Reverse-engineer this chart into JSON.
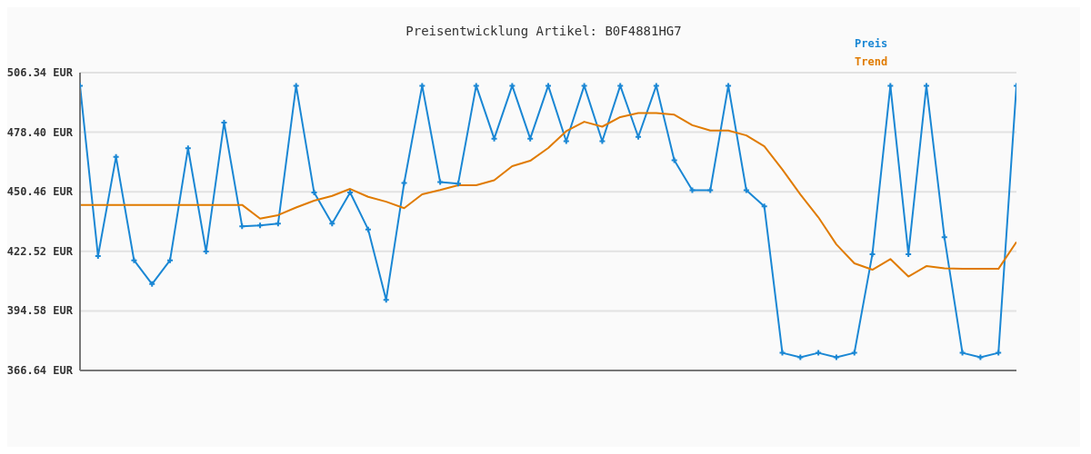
{
  "chart_data": {
    "type": "line",
    "title": "Preisentwicklung Artikel: B0F4881HG7",
    "categories": [
      null,
      null,
      null,
      null,
      null,
      null,
      null,
      null,
      null,
      null,
      null,
      null,
      null,
      null,
      null,
      null,
      null,
      null,
      null,
      null,
      null,
      null,
      null,
      null,
      null,
      null,
      null,
      null,
      null,
      null,
      null,
      null,
      null,
      null,
      null,
      null,
      null,
      null,
      null,
      null,
      null,
      null,
      null,
      null,
      null,
      null,
      null,
      null,
      null,
      null,
      null,
      null,
      null
    ],
    "series": [
      {
        "name": "Preis",
        "color": "#1a87d4",
        "marker": "cross",
        "values": [
          500.2,
          420.3,
          466.8,
          418.3,
          407.2,
          418.3,
          470.9,
          422.4,
          482.9,
          434.3,
          434.7,
          435.5,
          500.2,
          450.1,
          435.5,
          450.1,
          432.8,
          399.8,
          454.6,
          500.2,
          455.0,
          454.3,
          500.2,
          475.4,
          500.2,
          475.4,
          500.2,
          474.2,
          500.2,
          474.2,
          500.2,
          476.2,
          500.2,
          465.2,
          451.2,
          451.2,
          500.2,
          451.2,
          443.6,
          374.9,
          372.8,
          374.9,
          372.8,
          374.9,
          421.2,
          500.2,
          421.2,
          500.2,
          429.1,
          374.9,
          372.8,
          374.9,
          500.2
        ]
      },
      {
        "name": "Trend",
        "color": "#e07b00",
        "marker": "none",
        "values": [
          444.3,
          444.3,
          444.3,
          444.3,
          444.3,
          444.3,
          444.3,
          444.3,
          444.3,
          444.3,
          437.9,
          439.5,
          443.1,
          446.3,
          448.5,
          451.8,
          448.1,
          445.8,
          442.8,
          449.3,
          451.3,
          453.5,
          453.5,
          455.9,
          462.5,
          465.0,
          471.0,
          478.9,
          483.3,
          481.0,
          485.5,
          487.4,
          487.4,
          486.6,
          481.7,
          479.2,
          479.2,
          476.9,
          471.8,
          460.9,
          449.2,
          438.5,
          425.8,
          416.9,
          413.9,
          418.9,
          410.7,
          415.6,
          414.6,
          414.3,
          414.3,
          414.3,
          426.9
        ]
      }
    ],
    "ylim": [
      366.64,
      506.34
    ],
    "yticks": [
      {
        "value": 366.64,
        "label": "366.64 EUR"
      },
      {
        "value": 394.58,
        "label": "394.58 EUR"
      },
      {
        "value": 422.52,
        "label": "422.52 EUR"
      },
      {
        "value": 450.46,
        "label": "450.46 EUR"
      },
      {
        "value": 478.4,
        "label": "478.40 EUR"
      },
      {
        "value": 506.34,
        "label": "506.34 EUR"
      }
    ],
    "grid": "y",
    "legend": "top right",
    "tick_labels": "y",
    "line_style": "solid"
  }
}
